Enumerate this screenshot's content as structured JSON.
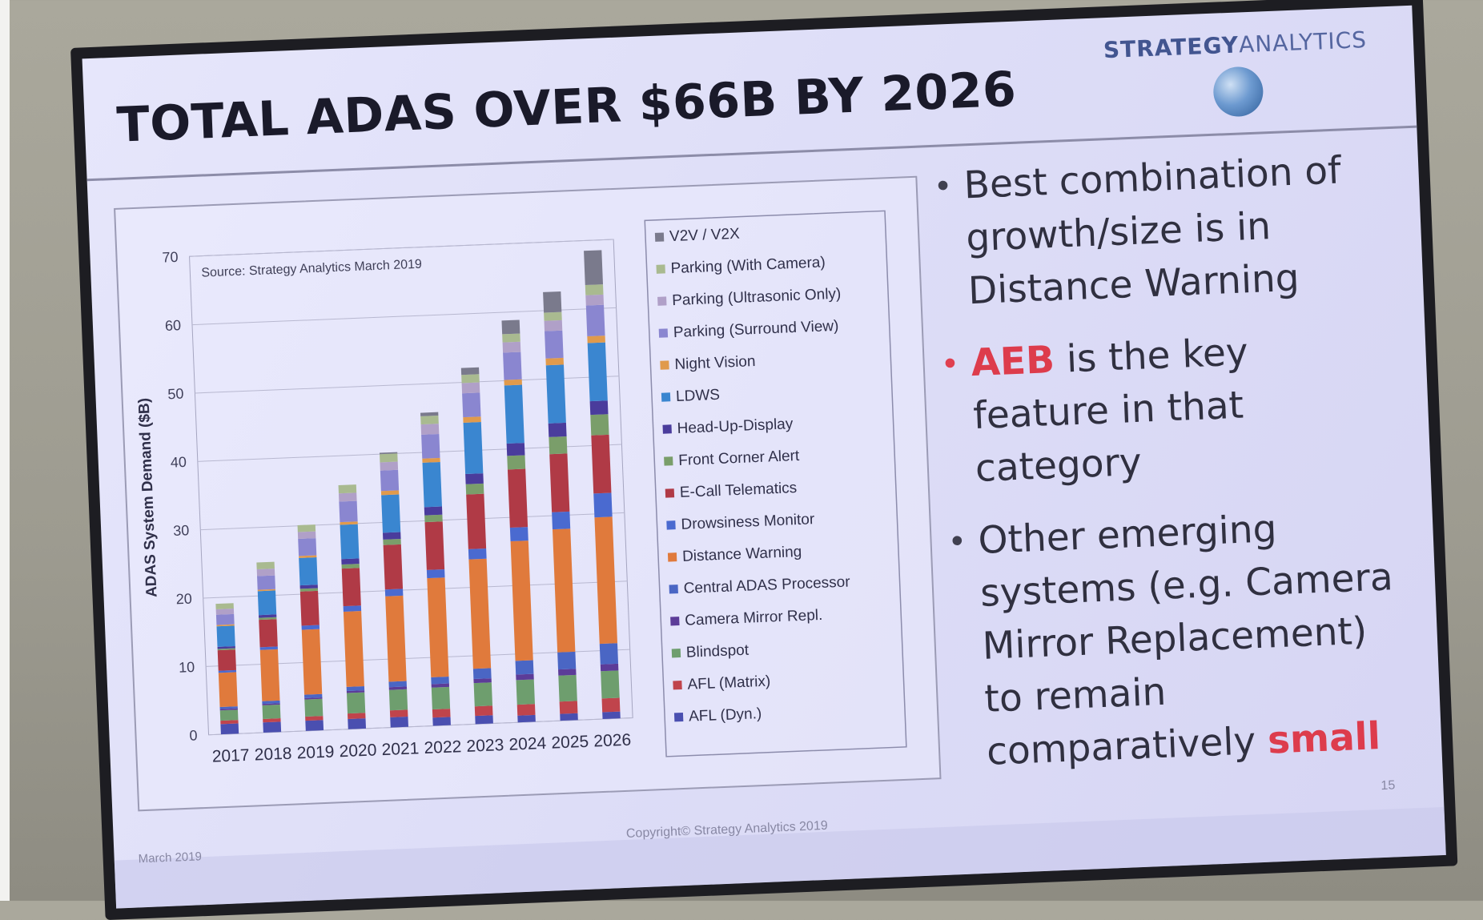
{
  "slide": {
    "title": "TOTAL ADAS OVER $66B BY 2026",
    "brand_strategy": "STRATEGY",
    "brand_analytics": "ANALYTICS",
    "bullets": [
      {
        "text": "Best combination of growth/size is in Distance Warning"
      },
      {
        "highlight": "AEB",
        "text": " is the key feature in that category"
      },
      {
        "text": "Other emerging systems (e.g. Camera Mirror Replacement) to remain comparatively ",
        "highlight": "small"
      }
    ],
    "footer_date": "March 2019",
    "footer_copyright": "Copyright© Strategy Analytics 2019",
    "page_number": "15"
  },
  "chart_data": {
    "type": "bar",
    "stacked": true,
    "annotation": "Source: Strategy Analytics March 2019",
    "ylabel": "ADAS System Demand ($B)",
    "xlabel": "",
    "ylim": [
      0,
      70
    ],
    "yticks": [
      0,
      10,
      20,
      30,
      40,
      50,
      60,
      70
    ],
    "grid": true,
    "legend_position": "right",
    "categories": [
      "2017",
      "2018",
      "2019",
      "2020",
      "2021",
      "2022",
      "2023",
      "2024",
      "2025",
      "2026"
    ],
    "series": [
      {
        "name": "AFL (Dyn.)",
        "color": "#4a4fb0",
        "values": [
          1.5,
          1.5,
          1.5,
          1.5,
          1.5,
          1.2,
          1.2,
          1.0,
          1.0,
          1.0
        ]
      },
      {
        "name": "AFL (Matrix)",
        "color": "#c0444c",
        "values": [
          0.5,
          0.5,
          0.6,
          0.8,
          1.0,
          1.2,
          1.4,
          1.6,
          1.8,
          2.0
        ]
      },
      {
        "name": "Blindspot",
        "color": "#6e9e6e",
        "values": [
          1.5,
          2.0,
          2.5,
          3.0,
          3.0,
          3.2,
          3.4,
          3.6,
          3.8,
          4.0
        ]
      },
      {
        "name": "Camera Mirror Repl.",
        "color": "#5c3c98",
        "values": [
          0.2,
          0.2,
          0.2,
          0.3,
          0.4,
          0.5,
          0.6,
          0.8,
          0.9,
          1.0
        ]
      },
      {
        "name": "Central ADAS Processor",
        "color": "#4a66c4",
        "values": [
          0.3,
          0.4,
          0.5,
          0.6,
          0.8,
          1.0,
          1.5,
          2.0,
          2.5,
          3.0
        ]
      },
      {
        "name": "Distance Warning",
        "color": "#e07a3c",
        "values": [
          5.0,
          7.5,
          9.5,
          11.0,
          12.5,
          14.5,
          16.0,
          17.5,
          18.0,
          18.5
        ]
      },
      {
        "name": "Drowsiness Monitor",
        "color": "#4a6ad0",
        "values": [
          0.3,
          0.4,
          0.6,
          0.8,
          1.0,
          1.2,
          1.5,
          2.0,
          2.5,
          3.5
        ]
      },
      {
        "name": "E-Call Telematics",
        "color": "#b03a46",
        "values": [
          3.0,
          4.0,
          5.0,
          5.5,
          6.5,
          7.0,
          8.0,
          8.5,
          8.5,
          8.5
        ]
      },
      {
        "name": "Front Corner Alert",
        "color": "#7a9e6a",
        "values": [
          0.2,
          0.3,
          0.4,
          0.6,
          0.8,
          1.0,
          1.5,
          2.0,
          2.5,
          3.0
        ]
      },
      {
        "name": "Head-Up-Display",
        "color": "#4a3c9c",
        "values": [
          0.3,
          0.4,
          0.5,
          0.8,
          1.0,
          1.2,
          1.5,
          1.8,
          2.0,
          2.0
        ]
      },
      {
        "name": "LDWS",
        "color": "#3a86d0",
        "values": [
          3.0,
          3.5,
          4.0,
          5.0,
          5.5,
          6.5,
          7.5,
          8.5,
          8.5,
          8.5
        ]
      },
      {
        "name": "Night Vision",
        "color": "#e09a4c",
        "values": [
          0.2,
          0.2,
          0.3,
          0.4,
          0.6,
          0.6,
          0.8,
          0.8,
          1.0,
          1.0
        ]
      },
      {
        "name": "Parking (Surround View)",
        "color": "#8a86d0",
        "values": [
          1.5,
          2.0,
          2.5,
          3.0,
          3.0,
          3.5,
          3.5,
          4.0,
          4.0,
          4.5
        ]
      },
      {
        "name": "Parking (Ultrasonic Only)",
        "color": "#b0a0c8",
        "values": [
          0.8,
          1.0,
          1.0,
          1.2,
          1.2,
          1.5,
          1.5,
          1.5,
          1.5,
          1.5
        ]
      },
      {
        "name": "Parking (With Camera)",
        "color": "#a9ba90",
        "values": [
          0.8,
          1.0,
          1.0,
          1.2,
          1.2,
          1.2,
          1.2,
          1.2,
          1.2,
          1.5
        ]
      },
      {
        "name": "V2V / V2X",
        "color": "#7a7a8c",
        "values": [
          0.0,
          0.0,
          0.0,
          0.0,
          0.2,
          0.5,
          1.0,
          2.0,
          3.0,
          5.0
        ]
      }
    ]
  }
}
